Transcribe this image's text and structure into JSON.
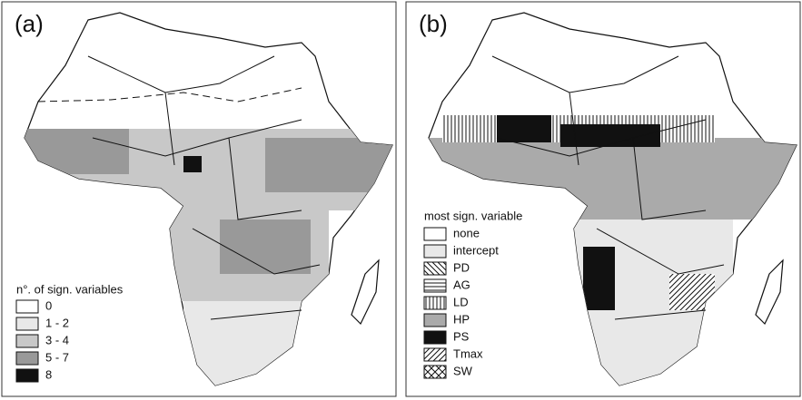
{
  "panels": [
    {
      "label": "(a)",
      "legend": {
        "title": "n°. of sign. variables",
        "items": [
          "0",
          "1 - 2",
          "3 - 4",
          "5 - 7",
          "8"
        ]
      }
    },
    {
      "label": "(b)",
      "legend": {
        "title": "most sign. variable",
        "items": [
          "none",
          "intercept",
          "PD",
          "AG",
          "LD",
          "HP",
          "PS",
          "Tmax",
          "SW"
        ]
      }
    }
  ]
}
